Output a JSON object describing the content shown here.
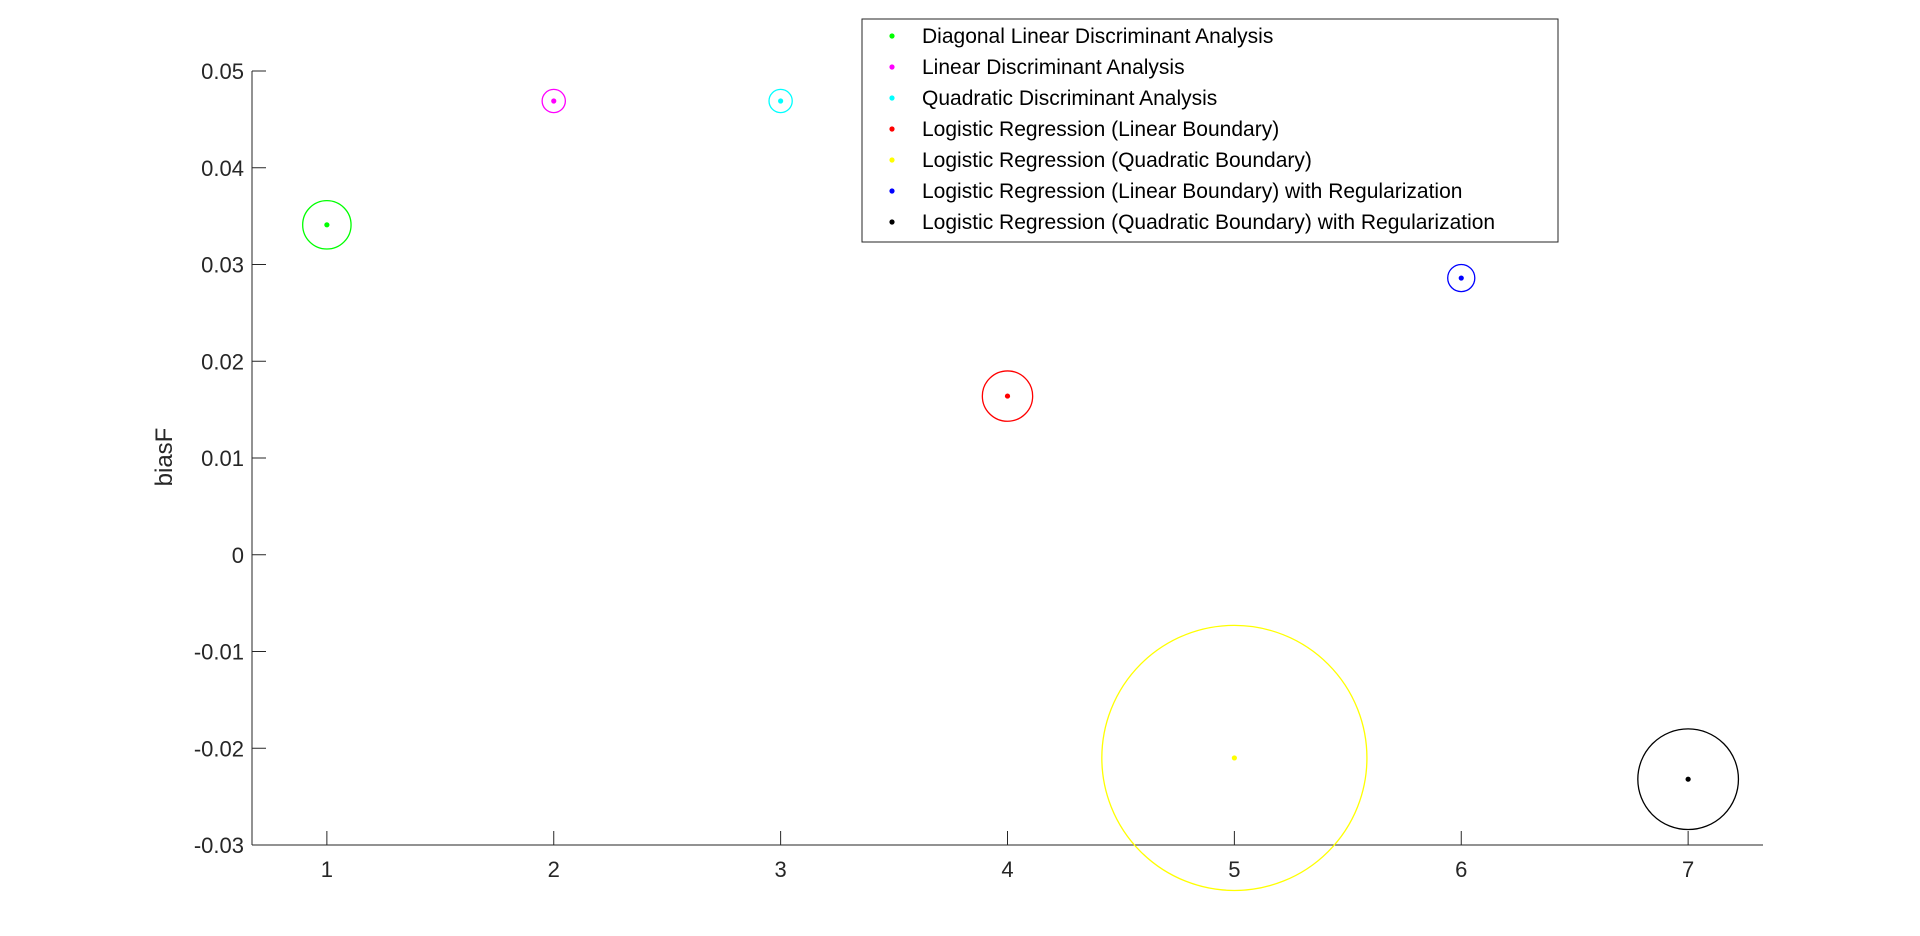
{
  "chart_data": {
    "type": "scatter",
    "xlabel": "",
    "ylabel": "biasF",
    "xlim": [
      0.67,
      7.33
    ],
    "ylim": [
      -0.03,
      0.05
    ],
    "xticks": [
      "1",
      "2",
      "3",
      "4",
      "5",
      "6",
      "7"
    ],
    "yticks": [
      "0.05",
      "0.04",
      "0.03",
      "0.02",
      "0.01",
      "0",
      "-0.01",
      "-0.02",
      "-0.03"
    ],
    "ytick_values": [
      0.05,
      0.04,
      0.03,
      0.02,
      0.01,
      0,
      -0.01,
      -0.02,
      -0.03
    ],
    "legend_position": "top-right",
    "grid": false,
    "series": [
      {
        "name": "Diagonal Linear Discriminant Analysis",
        "color": "#00ff00",
        "x": 1,
        "y": 0.0341,
        "error_radius": 0.0025
      },
      {
        "name": "Linear Discriminant Analysis",
        "color": "#ff00ff",
        "x": 2,
        "y": 0.0469,
        "error_radius": 0.0012
      },
      {
        "name": "Quadratic Discriminant Analysis",
        "color": "#00ffff",
        "x": 3,
        "y": 0.0469,
        "error_radius": 0.0012
      },
      {
        "name": "Logistic Regression (Linear Boundary)",
        "color": "#ff0000",
        "x": 4,
        "y": 0.0164,
        "error_radius": 0.0026
      },
      {
        "name": "Logistic Regression (Quadratic Boundary)",
        "color": "#ffff00",
        "x": 5,
        "y": -0.021,
        "error_radius": 0.0137
      },
      {
        "name": "Logistic Regression (Linear Boundary) with Regularization",
        "color": "#0000ff",
        "x": 6,
        "y": 0.0286,
        "error_radius": 0.0014
      },
      {
        "name": "Logistic Regression (Quadratic Boundary) with Regularization",
        "color": "#000000",
        "x": 7,
        "y": -0.0232,
        "error_radius": 0.0052
      }
    ]
  }
}
